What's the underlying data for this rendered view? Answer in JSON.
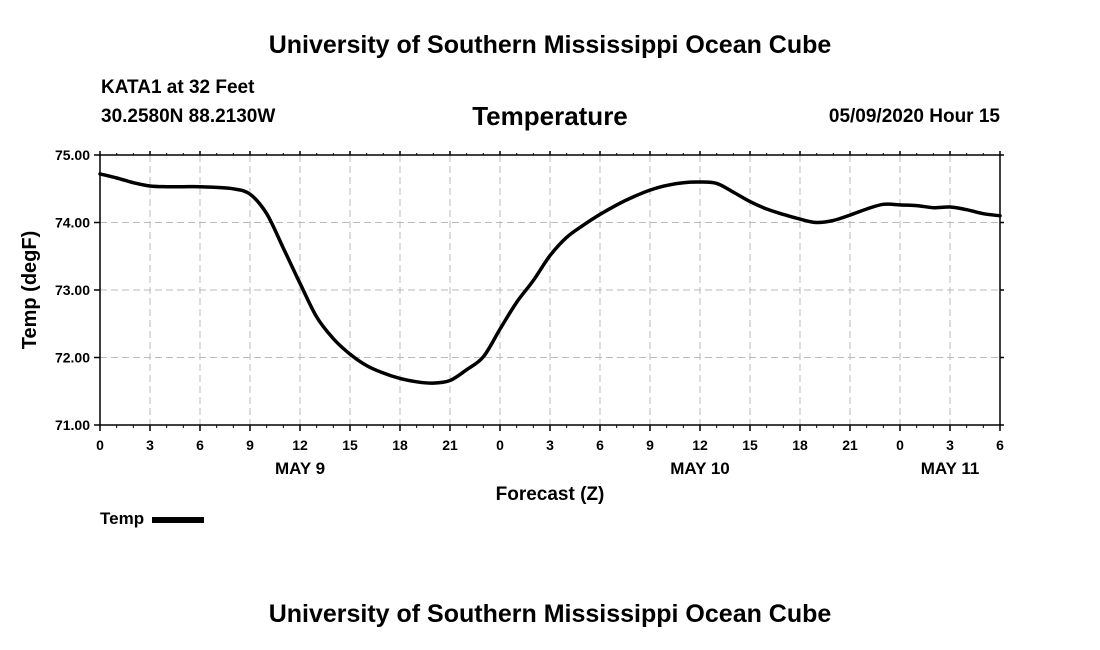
{
  "header": {
    "title_top": "University of Southern Mississippi Ocean Cube",
    "station_name": "KATA1 at 32 Feet",
    "station_coords": "30.2580N 88.2130W",
    "chart_title": "Temperature",
    "datetime": "05/09/2020 Hour 15"
  },
  "footer": {
    "title_bottom": "University of Southern Mississippi Ocean Cube"
  },
  "legend": {
    "label": "Temp"
  },
  "chart_data": {
    "type": "line",
    "title": "Temperature",
    "xlabel": "Forecast (Z)",
    "ylabel": "Temp (degF)",
    "ylim": [
      71.0,
      75.0
    ],
    "yticks": [
      "71.00",
      "72.00",
      "73.00",
      "74.00",
      "75.00"
    ],
    "xlim": [
      "2020-05-09 00Z",
      "2020-05-11 06Z"
    ],
    "xticks": [
      "0",
      "3",
      "6",
      "9",
      "12",
      "15",
      "18",
      "21",
      "0",
      "3",
      "6",
      "9",
      "12",
      "15",
      "18",
      "21",
      "0",
      "3",
      "6"
    ],
    "date_labels": [
      {
        "label": "MAY 9",
        "at": "2020-05-09 12Z"
      },
      {
        "label": "MAY 10",
        "at": "2020-05-10 12Z"
      },
      {
        "label": "MAY 11",
        "at": "2020-05-11 03Z"
      }
    ],
    "grid": true,
    "legend_position": "bottom-left",
    "series": [
      {
        "name": "Temp",
        "color": "#000000",
        "x": [
          "2020-05-09 00Z",
          "2020-05-09 01Z",
          "2020-05-09 02Z",
          "2020-05-09 03Z",
          "2020-05-09 04Z",
          "2020-05-09 05Z",
          "2020-05-09 06Z",
          "2020-05-09 07Z",
          "2020-05-09 08Z",
          "2020-05-09 09Z",
          "2020-05-09 10Z",
          "2020-05-09 11Z",
          "2020-05-09 12Z",
          "2020-05-09 13Z",
          "2020-05-09 14Z",
          "2020-05-09 15Z",
          "2020-05-09 16Z",
          "2020-05-09 17Z",
          "2020-05-09 18Z",
          "2020-05-09 19Z",
          "2020-05-09 20Z",
          "2020-05-09 21Z",
          "2020-05-09 22Z",
          "2020-05-09 23Z",
          "2020-05-10 00Z",
          "2020-05-10 01Z",
          "2020-05-10 02Z",
          "2020-05-10 03Z",
          "2020-05-10 04Z",
          "2020-05-10 05Z",
          "2020-05-10 06Z",
          "2020-05-10 07Z",
          "2020-05-10 08Z",
          "2020-05-10 09Z",
          "2020-05-10 10Z",
          "2020-05-10 11Z",
          "2020-05-10 12Z",
          "2020-05-10 13Z",
          "2020-05-10 14Z",
          "2020-05-10 15Z",
          "2020-05-10 16Z",
          "2020-05-10 17Z",
          "2020-05-10 18Z",
          "2020-05-10 19Z",
          "2020-05-10 20Z",
          "2020-05-10 21Z",
          "2020-05-10 22Z",
          "2020-05-10 23Z",
          "2020-05-11 00Z",
          "2020-05-11 01Z",
          "2020-05-11 02Z",
          "2020-05-11 03Z",
          "2020-05-11 04Z",
          "2020-05-11 05Z",
          "2020-05-11 06Z"
        ],
        "values": [
          74.72,
          74.66,
          74.59,
          74.54,
          74.53,
          74.53,
          74.53,
          74.52,
          74.5,
          74.42,
          74.13,
          73.62,
          73.1,
          72.6,
          72.28,
          72.05,
          71.88,
          71.77,
          71.69,
          71.64,
          71.62,
          71.66,
          71.82,
          72.01,
          72.42,
          72.82,
          73.14,
          73.51,
          73.78,
          73.96,
          74.12,
          74.26,
          74.38,
          74.48,
          74.55,
          74.59,
          74.6,
          74.58,
          74.45,
          74.31,
          74.2,
          74.12,
          74.05,
          74.0,
          74.03,
          74.11,
          74.2,
          74.27,
          74.26,
          74.25,
          74.22,
          74.23,
          74.19,
          74.13,
          74.1
        ],
        "values_tail_note": ""
      }
    ]
  }
}
